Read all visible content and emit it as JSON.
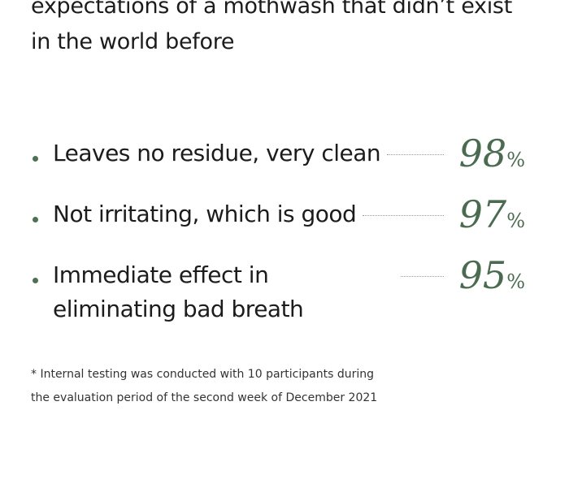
{
  "heading": {
    "lines": [
      "expectations of a mothwash that didn’t exist",
      "in the world before"
    ]
  },
  "items": [
    {
      "text": "Leaves no residue, very clean",
      "value": 98,
      "unit": "%"
    },
    {
      "text": "Not irritating, which is good",
      "value": 97,
      "unit": "%"
    },
    {
      "text": "Immediate effect in eliminating bad breath",
      "value": 95,
      "unit": "%"
    }
  ],
  "footnote": {
    "lines": [
      "* Internal testing was conducted with 10 participants during",
      "the evaluation period of the second week of December 2021"
    ]
  }
}
